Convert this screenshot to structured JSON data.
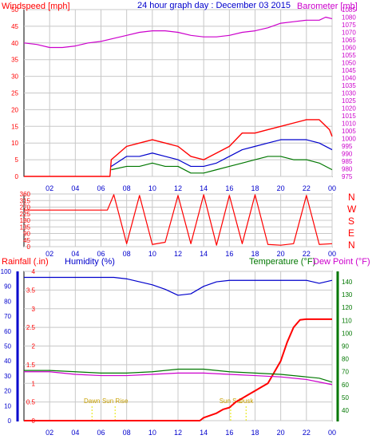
{
  "header": {
    "windspeed_label": "Windspeed [mph]",
    "title": "24 hour graph day : December 03 2015",
    "barometer_label": "Barometer [mb]"
  },
  "lower_header": {
    "rainfall_label": "Rainfall (.in)",
    "humidity_label": "Humidity (%)",
    "temperature_label": "Temperature (°F)",
    "dewpoint_label": "Dew Point (°F)"
  },
  "direction_labels": [
    "N",
    "W",
    "S",
    "E",
    "N"
  ],
  "colors": {
    "red": "#ff0000",
    "blue": "#0000cc",
    "green": "#007700",
    "magenta": "#cc00cc",
    "grid": "#c8c8c8",
    "sun_marker": "#e6e600"
  },
  "chart_data": [
    {
      "type": "line",
      "title": "24 hour graph day : December 03 2015",
      "x_ticks": [
        "02",
        "04",
        "06",
        "08",
        "10",
        "12",
        "14",
        "16",
        "18",
        "20",
        "22",
        "00"
      ],
      "left_axis": {
        "ticks": [
          0,
          5,
          10,
          15,
          20,
          25,
          30,
          35,
          40,
          45,
          50
        ],
        "ylim": [
          0,
          50
        ]
      },
      "right_axis": {
        "ticks": [
          975,
          980,
          985,
          990,
          995,
          1000,
          1005,
          1010,
          1015,
          1020,
          1025,
          1030,
          1035,
          1040,
          1045,
          1050,
          1055,
          1060,
          1065,
          1070,
          1075,
          1080,
          1085
        ],
        "ylim": [
          975,
          1085
        ]
      },
      "grid": true,
      "series": [
        {
          "name": "Windspeed [mph]",
          "axis": "left",
          "color": "#ff0000",
          "x": [
            0,
            6.7,
            6.8,
            8,
            9,
            10,
            11,
            12,
            13,
            14,
            15,
            16,
            17,
            18,
            19,
            20,
            21,
            22,
            23,
            23.8,
            24
          ],
          "y": [
            0,
            0,
            5,
            9,
            10,
            11,
            10,
            9,
            6,
            5,
            7,
            9,
            13,
            13,
            14,
            15,
            16,
            17,
            17,
            14,
            12
          ]
        },
        {
          "axis": "left",
          "color": "#0000cc",
          "x": [
            6.8,
            8,
            9,
            10,
            11,
            12,
            13,
            14,
            15,
            16,
            17,
            18,
            19,
            20,
            21,
            22,
            23,
            24
          ],
          "y": [
            3,
            6,
            6,
            7,
            6,
            5,
            3,
            3,
            4,
            6,
            8,
            9,
            10,
            11,
            11,
            11,
            10,
            8
          ]
        },
        {
          "axis": "left",
          "color": "#007700",
          "x": [
            6.8,
            8,
            9,
            10,
            11,
            12,
            13,
            14,
            15,
            16,
            17,
            18,
            19,
            20,
            21,
            22,
            23,
            24
          ],
          "y": [
            2,
            3,
            3,
            4,
            3,
            3,
            1,
            1,
            2,
            3,
            4,
            5,
            6,
            6,
            5,
            5,
            4,
            2
          ]
        },
        {
          "name": "Barometer [mb]",
          "axis": "right",
          "color": "#cc00cc",
          "x": [
            0,
            1,
            2,
            3,
            4,
            5,
            6,
            7,
            8,
            9,
            10,
            11,
            12,
            13,
            14,
            15,
            16,
            17,
            18,
            19,
            20,
            21,
            22,
            23,
            23.5,
            24
          ],
          "y": [
            1063,
            1062,
            1060,
            1060,
            1061,
            1063,
            1064,
            1066,
            1068,
            1070,
            1071,
            1071,
            1070,
            1068,
            1067,
            1067,
            1068,
            1070,
            1071,
            1073,
            1076,
            1077,
            1078,
            1078,
            1080,
            1079
          ]
        }
      ]
    },
    {
      "type": "line",
      "ylabel": "N W S E N",
      "x_ticks": [
        "02",
        "04",
        "06",
        "08",
        "10",
        "12",
        "14",
        "16",
        "18",
        "20",
        "22",
        "00"
      ],
      "left_axis": {
        "ticks": [
          0,
          45,
          90,
          135,
          180,
          225,
          270,
          315,
          360
        ],
        "ylim": [
          0,
          360
        ]
      },
      "grid": true,
      "series": [
        {
          "color": "#ff0000",
          "x": [
            0,
            6.5,
            7,
            8,
            9,
            10,
            11,
            12,
            13,
            14,
            15,
            16,
            17,
            18,
            19,
            20,
            21,
            22,
            23,
            24
          ],
          "y": [
            250,
            250,
            355,
            20,
            350,
            15,
            30,
            350,
            20,
            355,
            10,
            350,
            20,
            355,
            15,
            10,
            20,
            350,
            15,
            20
          ]
        }
      ]
    },
    {
      "type": "line",
      "x_ticks": [
        "02",
        "04",
        "06",
        "08",
        "10",
        "12",
        "14",
        "16",
        "18",
        "20",
        "22",
        "00"
      ],
      "rain_axis": {
        "ticks": [
          0,
          0.5,
          1,
          1.5,
          2,
          2.5,
          3,
          3.5,
          4
        ],
        "ylim": [
          0,
          4
        ]
      },
      "humidity_axis": {
        "ticks": [
          0,
          10,
          20,
          30,
          40,
          50,
          60,
          70,
          80,
          90,
          100
        ],
        "ylim": [
          0,
          100
        ]
      },
      "temp_axis": {
        "ticks": [
          40,
          50,
          60,
          70,
          80,
          90,
          100,
          110,
          120,
          130,
          140
        ],
        "ylim": [
          32,
          148
        ]
      },
      "grid": true,
      "annotations": [
        {
          "label": "Dawn",
          "hour": 5.3
        },
        {
          "label": "Sun Rise",
          "hour": 7.1
        },
        {
          "label": "Sun Set",
          "hour": 16.1
        },
        {
          "label": "Dusk",
          "hour": 17.3
        }
      ],
      "series": [
        {
          "name": "Rainfall (.in)",
          "axis": "rain",
          "color": "#ff0000",
          "x": [
            0,
            13.7,
            14,
            15,
            15.5,
            16,
            16.5,
            17,
            17.5,
            18,
            18.5,
            19,
            19.5,
            20,
            20.5,
            21,
            21.5,
            22,
            23,
            24
          ],
          "y": [
            0,
            0,
            0.08,
            0.2,
            0.3,
            0.35,
            0.5,
            0.6,
            0.7,
            0.8,
            0.9,
            1.0,
            1.3,
            1.6,
            2.1,
            2.5,
            2.7,
            2.72,
            2.72,
            2.72
          ]
        },
        {
          "name": "Humidity (%)",
          "axis": "humidity",
          "color": "#0000cc",
          "x": [
            0,
            1,
            2,
            3,
            4,
            5,
            6,
            7,
            8,
            9,
            10,
            11,
            12,
            13,
            14,
            15,
            16,
            17,
            18,
            19,
            20,
            21,
            22,
            23,
            24
          ],
          "y": [
            96,
            96,
            96,
            96,
            96,
            96,
            96,
            96,
            95,
            93,
            91,
            88,
            84,
            85,
            90,
            93,
            94,
            94,
            94,
            94,
            94,
            94,
            94,
            92,
            94
          ]
        },
        {
          "name": "Temperature (°F)",
          "axis": "temp",
          "color": "#007700",
          "x": [
            0,
            2,
            4,
            6,
            8,
            10,
            12,
            14,
            16,
            18,
            20,
            22,
            23,
            24
          ],
          "y": [
            71,
            71,
            70,
            69,
            69,
            70,
            72,
            72,
            70,
            69,
            68,
            66,
            65,
            62
          ]
        },
        {
          "name": "Dew Point (°F)",
          "axis": "temp",
          "color": "#cc00cc",
          "x": [
            0,
            2,
            4,
            6,
            8,
            10,
            12,
            14,
            16,
            18,
            20,
            22,
            23,
            24
          ],
          "y": [
            70,
            70,
            68,
            67,
            67,
            68,
            69,
            69,
            68,
            67,
            66,
            64,
            62,
            60
          ]
        }
      ]
    }
  ]
}
